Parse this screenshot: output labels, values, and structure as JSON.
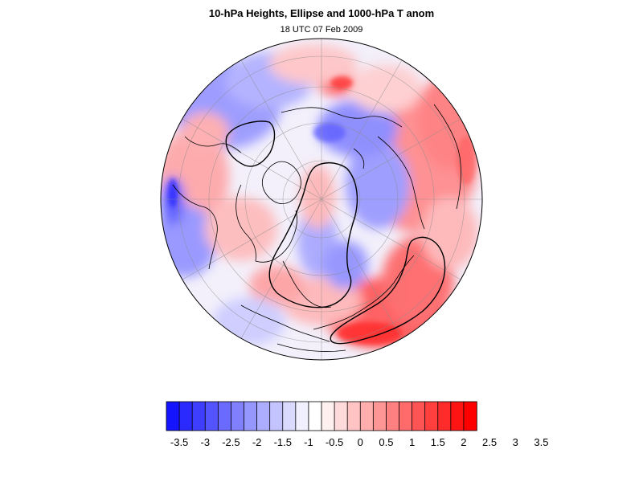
{
  "title": "10-hPa Heights, Ellipse and 1000-hPa T anom",
  "subtitle": "18 UTC 07 Feb 2009",
  "colorbar": {
    "levels": [
      -3.5,
      -3,
      -2.5,
      -2,
      -1.5,
      -1,
      -0.5,
      0,
      0.5,
      1,
      1.5,
      2,
      2.5,
      3,
      3.5
    ],
    "labels": [
      "-3.5",
      "-3",
      "-2.5",
      "-2",
      "-1.5",
      "-1",
      "-0.5",
      "0",
      "0.5",
      "1",
      "1.5",
      "2",
      "2.5",
      "3",
      "3.5"
    ],
    "colors": [
      "#1414ff",
      "#2a2aff",
      "#3e3eff",
      "#5454ff",
      "#6a6aff",
      "#8080ff",
      "#9696ff",
      "#adadff",
      "#c3c3ff",
      "#dadaff",
      "#f0f0ff",
      "#ffffff",
      "#fff0f0",
      "#ffdada",
      "#ffc3c3",
      "#ffadad",
      "#ff9696",
      "#ff8080",
      "#ff6a6a",
      "#ff5454",
      "#ff3e3e",
      "#ff2a2a",
      "#ff1414",
      "#ff0000"
    ]
  },
  "map": {
    "projection": "orthographic, north polar view",
    "field": "1000-hPa temperature anomaly",
    "contours": "10-hPa heights (black)",
    "overlay": "ellipse"
  },
  "colors": {
    "negative": "#4040ff",
    "positive": "#ff4040",
    "coast": "#000000",
    "grid": "#8c8c8c"
  }
}
